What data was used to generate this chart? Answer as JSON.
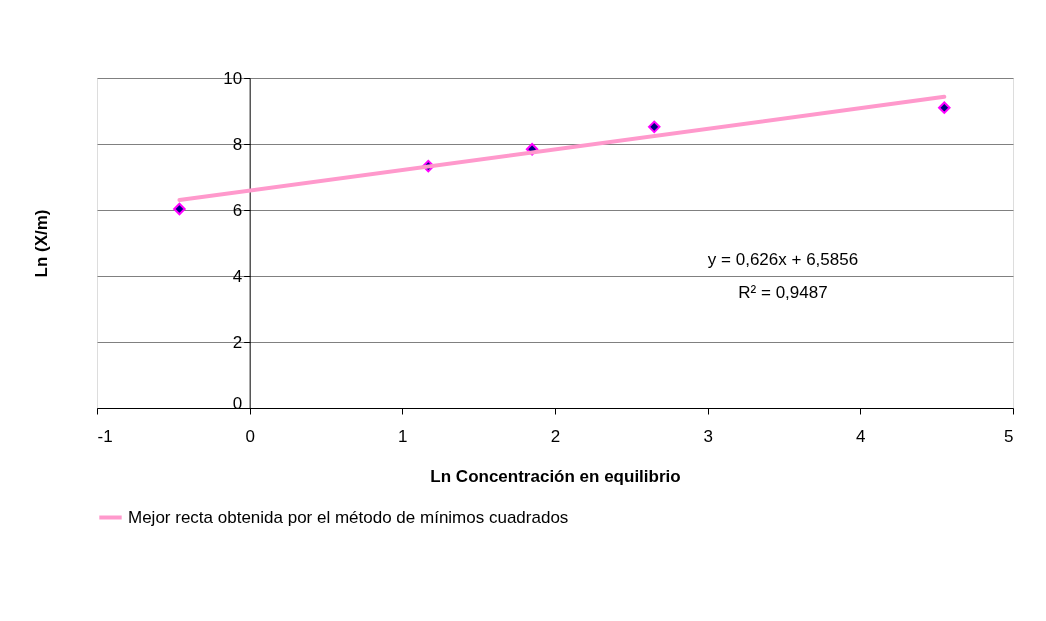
{
  "chart_data": {
    "type": "scatter",
    "xlabel": "Ln Concentración en equilibrio",
    "ylabel": "Ln (X/m)",
    "xlim": [
      -1,
      5
    ],
    "xticks": [
      -1,
      0,
      1,
      2,
      3,
      4,
      5
    ],
    "ylim": [
      0,
      10
    ],
    "yticks": [
      0,
      2,
      4,
      6,
      8,
      10
    ],
    "grid": "y",
    "legend": "bottom",
    "annotations": [
      "y = 0,626x + 6,5856",
      "R² = 0,9487"
    ],
    "series": [
      {
        "color": "#000080",
        "marker": "diamond",
        "x": [
          -0.46,
          1.17,
          1.85,
          2.65,
          4.55
        ],
        "values": [
          6.03,
          7.33,
          7.84,
          8.52,
          9.1
        ]
      },
      {
        "type": "line",
        "name": "Mejor recta obtenida por el método de mínimos cuadrados",
        "color": "#ff99cc",
        "x": [
          -0.46,
          4.55
        ],
        "values": [
          6.3,
          9.43
        ]
      }
    ]
  }
}
